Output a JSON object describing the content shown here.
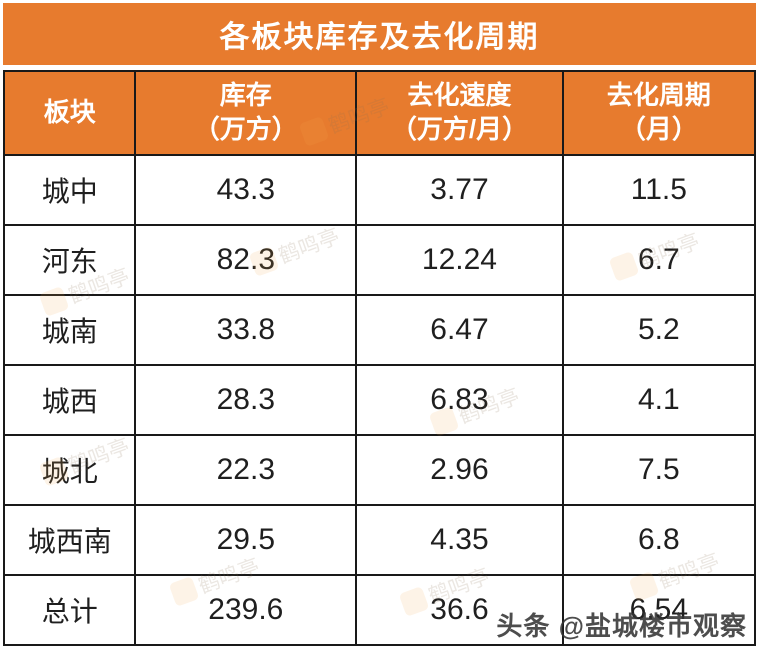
{
  "accent_color": "#e77b2e",
  "title": "各板块库存及去化周期",
  "table": {
    "columns": [
      {
        "name": "板块",
        "lines": [
          "板块"
        ]
      },
      {
        "name": "库存（万方）",
        "lines": [
          "库存",
          "（万方）"
        ]
      },
      {
        "name": "去化速度（万方/月）",
        "lines": [
          "去化速度",
          "（万方/月）"
        ]
      },
      {
        "name": "去化周期（月）",
        "lines": [
          "去化周期",
          "（月）"
        ]
      }
    ],
    "rows": [
      [
        "城中",
        "43.3",
        "3.77",
        "11.5"
      ],
      [
        "河东",
        "82.3",
        "12.24",
        "6.7"
      ],
      [
        "城南",
        "33.8",
        "6.47",
        "5.2"
      ],
      [
        "城西",
        "28.3",
        "6.83",
        "4.1"
      ],
      [
        "城北",
        "22.3",
        "2.96",
        "7.5"
      ],
      [
        "城西南",
        "29.5",
        "4.35",
        "6.8"
      ],
      [
        "总计",
        "239.6",
        "36.6",
        "6.54"
      ]
    ]
  },
  "chart_data": {
    "type": "table",
    "title": "各板块库存及去化周期",
    "columns": [
      "板块",
      "库存（万方）",
      "去化速度（万方/月）",
      "去化周期（月）"
    ],
    "rows": [
      [
        "城中",
        43.3,
        3.77,
        11.5
      ],
      [
        "河东",
        82.3,
        12.24,
        6.7
      ],
      [
        "城南",
        33.8,
        6.47,
        5.2
      ],
      [
        "城西",
        28.3,
        6.83,
        4.1
      ],
      [
        "城北",
        22.3,
        2.96,
        7.5
      ],
      [
        "城西南",
        29.5,
        4.35,
        6.8
      ],
      [
        "总计",
        239.6,
        36.6,
        6.54
      ]
    ]
  },
  "watermarks": {
    "stamp_text": "鹤鸣亭",
    "attribution": "头条 @盐城楼市观察"
  }
}
